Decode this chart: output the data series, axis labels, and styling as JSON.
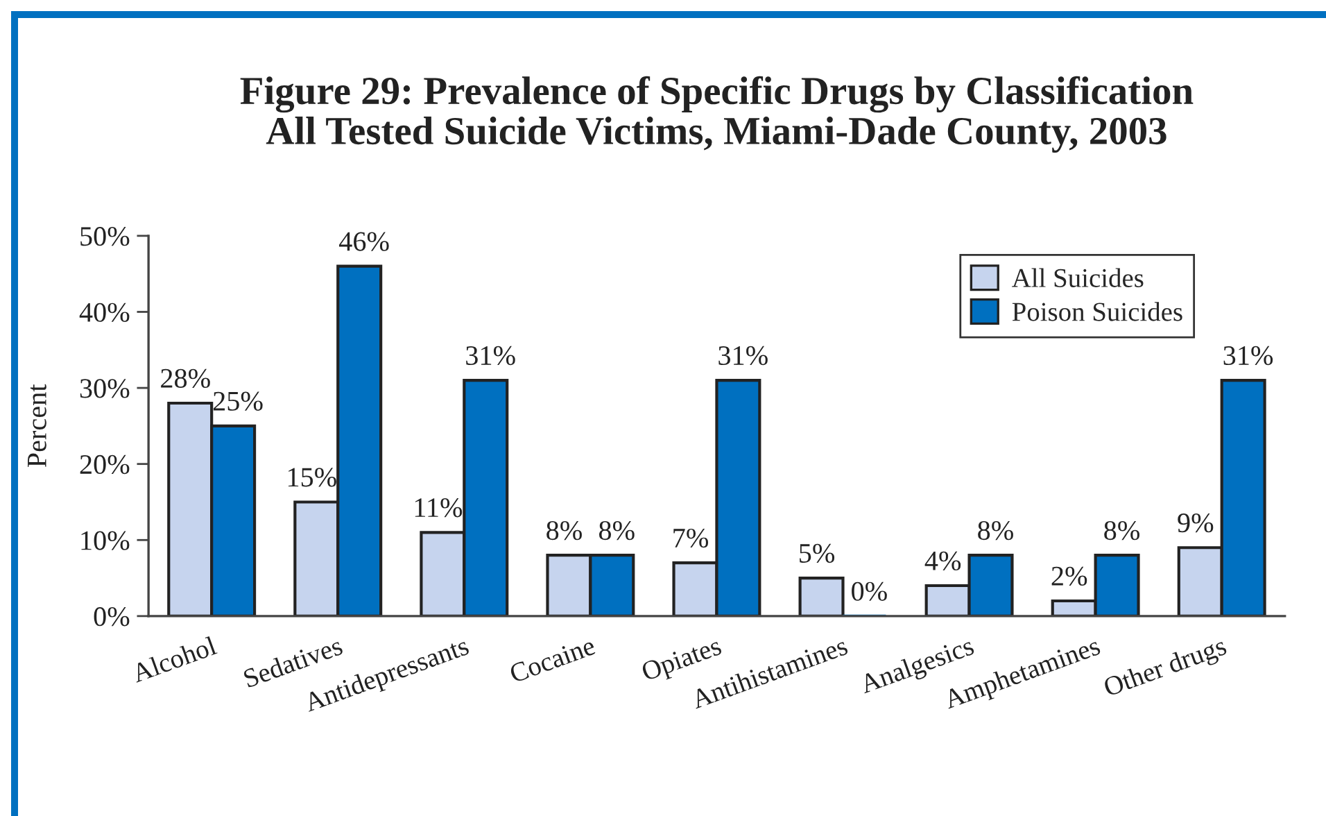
{
  "chart_data": {
    "type": "bar",
    "title": "Figure 29: Prevalence of Specific Drugs by Classification",
    "subtitle": "All Tested Suicide Victims, Miami-Dade County, 2003",
    "ylabel": "Percent",
    "categories": [
      "Alcohol",
      "Sedatives",
      "Antidepressants",
      "Cocaine",
      "Opiates",
      "Antihistamines",
      "Analgesics",
      "Amphetamines",
      "Other drugs"
    ],
    "series": [
      {
        "name": "All Suicides",
        "color": "#c6d4ee",
        "values": [
          28,
          15,
          11,
          8,
          7,
          5,
          4,
          2,
          9
        ],
        "value_labels": [
          "28%",
          "15%",
          "11%",
          "8%",
          "7%",
          "5%",
          "4%",
          "2%",
          "9%"
        ]
      },
      {
        "name": "Poison Suicides",
        "color": "#0070c0",
        "values": [
          25,
          46,
          31,
          8,
          31,
          0,
          8,
          8,
          31
        ],
        "value_labels": [
          "25%",
          "46%",
          "31%",
          "8%",
          "31%",
          "0%",
          "8%",
          "8%",
          "31%"
        ]
      }
    ],
    "ylim": [
      0,
      50
    ],
    "yticks": [
      {
        "value": 0,
        "label": "0%"
      },
      {
        "value": 10,
        "label": "10%"
      },
      {
        "value": 20,
        "label": "20%"
      },
      {
        "value": 30,
        "label": "30%"
      },
      {
        "value": 40,
        "label": "40%"
      },
      {
        "value": 50,
        "label": "50%"
      }
    ],
    "legend": "top right"
  }
}
